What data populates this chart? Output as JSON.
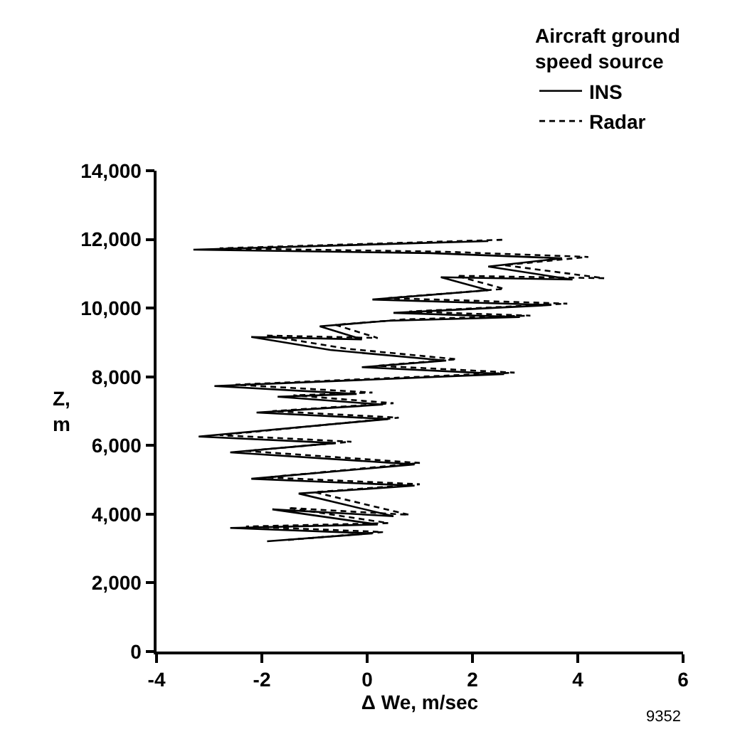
{
  "chart_data": {
    "type": "line",
    "xlabel": "Δ We, m/sec",
    "ylabel": "Z, m",
    "legend_title": "Aircraft ground speed source",
    "annotations": [
      "9352"
    ],
    "series": [
      {
        "name": "INS",
        "color": "#000000",
        "line_style": "solid",
        "x": [
          -1.9,
          0.1,
          -2.6,
          0.2,
          -1.8,
          0.5,
          -1.3,
          0.9,
          -2.2,
          0.9,
          -2.6,
          -0.6,
          -3.2,
          0.4,
          -2.1,
          0.3,
          -1.7,
          -0.2,
          -2.9,
          2.6,
          -0.1,
          1.5,
          -0.7,
          -2.2,
          -0.1,
          -0.9,
          0.4,
          2.9,
          0.5,
          3.5,
          0.1,
          2.3,
          1.4,
          3.9,
          2.3,
          3.7,
          1.2,
          -3.3,
          2.3
        ],
        "values": [
          3210,
          3440,
          3600,
          3700,
          4140,
          3940,
          4600,
          4830,
          5030,
          5450,
          5800,
          6070,
          6260,
          6770,
          6960,
          7190,
          7420,
          7500,
          7730,
          8080,
          8280,
          8470,
          8780,
          9160,
          9090,
          9470,
          9630,
          9740,
          9860,
          10090,
          10250,
          10520,
          10900,
          10830,
          11210,
          11450,
          11600,
          11700,
          11950
        ]
      },
      {
        "name": "Radar",
        "color": "#000000",
        "line_style": "dashed",
        "x": [
          -1.5,
          0.3,
          -2.3,
          0.4,
          -1.5,
          0.8,
          -1.0,
          1.0,
          -1.9,
          1.0,
          -2.3,
          -0.3,
          -2.8,
          0.6,
          -1.8,
          0.5,
          -1.4,
          0.1,
          -2.5,
          2.8,
          0.2,
          1.7,
          -0.4,
          -1.9,
          0.2,
          -0.6,
          0.7,
          3.1,
          0.8,
          3.8,
          0.4,
          2.6,
          1.7,
          4.5,
          2.6,
          4.2,
          1.5,
          -2.8,
          2.6
        ],
        "values": [
          3250,
          3480,
          3640,
          3740,
          4180,
          3980,
          4640,
          4870,
          5070,
          5490,
          5840,
          6110,
          6300,
          6810,
          7000,
          7230,
          7460,
          7540,
          7770,
          8120,
          8320,
          8510,
          8820,
          9200,
          9130,
          9510,
          9670,
          9780,
          9900,
          10130,
          10290,
          10560,
          10940,
          10870,
          11250,
          11490,
          11640,
          11740,
          11990
        ]
      }
    ],
    "xlim": [
      -4,
      6
    ],
    "xticks": [
      -4,
      -2,
      0,
      2,
      4,
      6
    ],
    "ylim": [
      0,
      14000
    ],
    "yticks": [
      {
        "value": 0,
        "label": "0"
      },
      {
        "value": 2000,
        "label": "2,000"
      },
      {
        "value": 4000,
        "label": "4,000"
      },
      {
        "value": 6000,
        "label": "6,000"
      },
      {
        "value": 8000,
        "label": "8,000"
      },
      {
        "value": 10000,
        "label": "10,000"
      },
      {
        "value": 12000,
        "label": "12,000"
      },
      {
        "value": 14000,
        "label": "14,000"
      }
    ],
    "grid": false,
    "legend": "top right",
    "marker": "none"
  }
}
